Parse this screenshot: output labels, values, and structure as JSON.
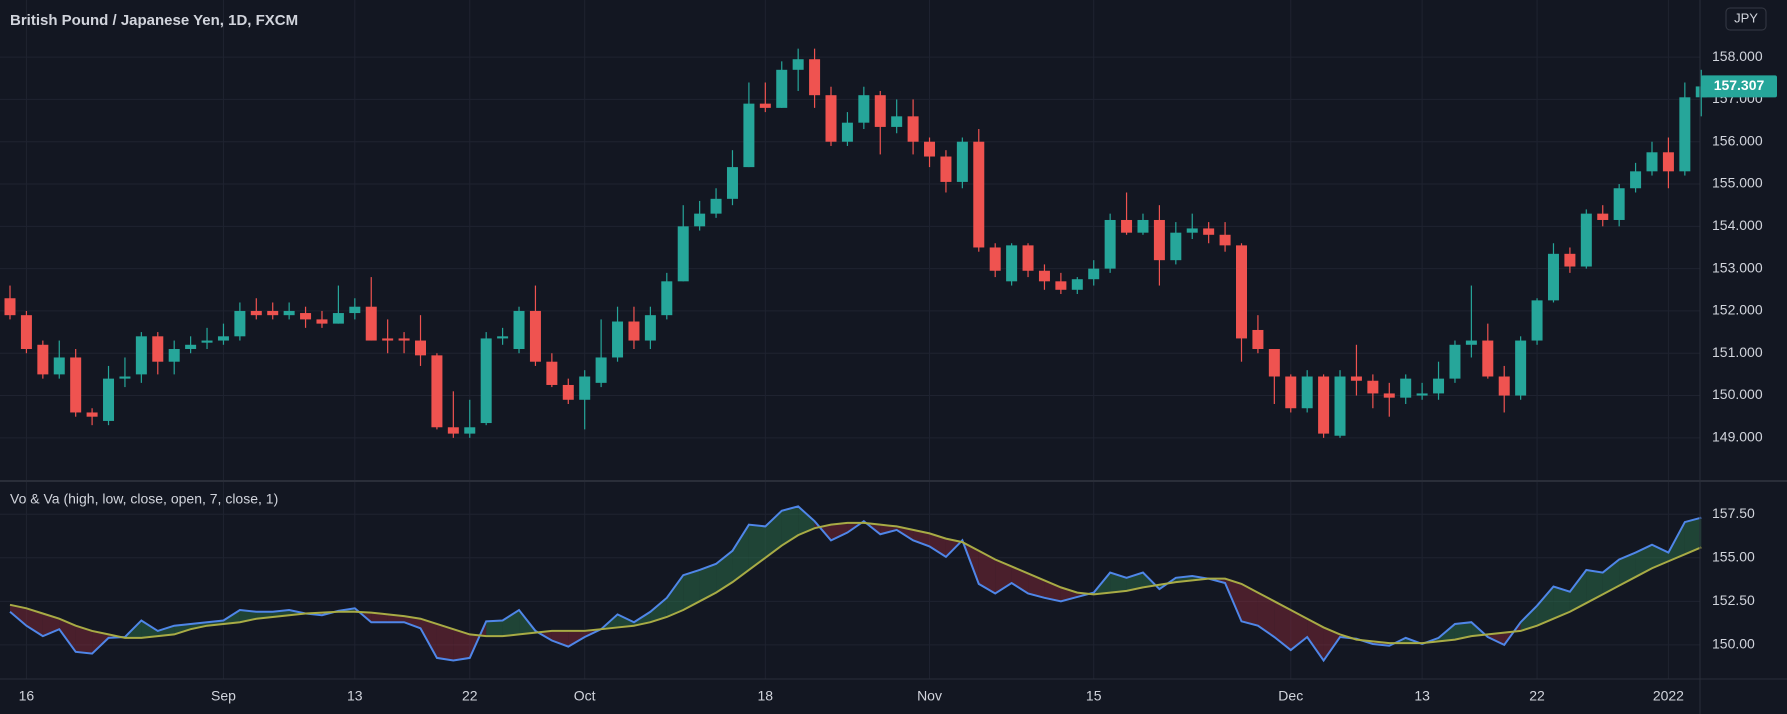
{
  "chart_data": [
    {
      "type": "candlestick",
      "title": "British Pound / Japanese Yen, 1D, FXCM",
      "currency": "JPY",
      "up_color": "#26a69a",
      "down_color": "#ef5350",
      "grid": true,
      "categories": [
        null,
        "16",
        null,
        null,
        null,
        null,
        null,
        null,
        null,
        null,
        null,
        null,
        null,
        "Sep",
        null,
        null,
        null,
        null,
        null,
        null,
        null,
        "13",
        null,
        null,
        null,
        null,
        null,
        null,
        "22",
        null,
        null,
        null,
        null,
        null,
        null,
        "Oct",
        null,
        null,
        null,
        null,
        null,
        null,
        null,
        null,
        null,
        null,
        "18",
        null,
        null,
        null,
        null,
        null,
        null,
        null,
        null,
        null,
        "Nov",
        null,
        null,
        null,
        null,
        null,
        null,
        null,
        null,
        null,
        "15",
        null,
        null,
        null,
        null,
        null,
        null,
        null,
        null,
        null,
        null,
        null,
        "Dec",
        null,
        null,
        null,
        null,
        null,
        null,
        null,
        "13",
        null,
        null,
        null,
        null,
        null,
        null,
        "22",
        null,
        null,
        null,
        null,
        null,
        null,
        null,
        "2022",
        null,
        null
      ],
      "open": [
        152.3,
        151.9,
        151.2,
        150.5,
        150.9,
        149.6,
        149.4,
        150.4,
        150.5,
        151.4,
        150.8,
        151.1,
        151.25,
        151.3,
        151.4,
        152.0,
        152.0,
        151.9,
        151.95,
        151.8,
        151.7,
        151.95,
        152.1,
        151.35,
        151.35,
        151.3,
        150.95,
        149.25,
        149.1,
        149.35,
        151.35,
        151.1,
        152.0,
        150.8,
        150.25,
        149.9,
        150.3,
        150.9,
        151.75,
        151.3,
        151.9,
        152.7,
        154.0,
        154.3,
        154.65,
        155.4,
        156.9,
        156.8,
        157.7,
        157.95,
        157.1,
        156.0,
        156.45,
        157.1,
        156.35,
        156.6,
        156.0,
        155.65,
        155.05,
        156.0,
        153.5,
        152.7,
        153.55,
        152.95,
        152.7,
        152.5,
        152.75,
        153.0,
        154.15,
        153.85,
        154.15,
        153.2,
        153.85,
        153.95,
        153.8,
        153.55,
        151.55,
        151.1,
        150.45,
        149.7,
        150.45,
        149.05,
        150.45,
        150.35,
        150.05,
        149.95,
        150.0,
        150.05,
        150.4,
        151.2,
        151.3,
        150.45,
        150.0,
        151.3,
        152.25,
        153.35,
        153.05,
        154.3,
        154.15,
        154.9,
        155.3,
        155.75,
        155.3,
        157.05
      ],
      "high": [
        152.6,
        152.0,
        151.3,
        151.3,
        151.1,
        149.7,
        150.7,
        150.9,
        151.5,
        151.5,
        151.3,
        151.4,
        151.6,
        151.7,
        152.2,
        152.3,
        152.2,
        152.2,
        152.1,
        152.0,
        152.6,
        152.3,
        152.8,
        151.8,
        151.5,
        151.9,
        151.0,
        150.1,
        149.9,
        151.5,
        151.6,
        152.1,
        152.6,
        151.0,
        150.4,
        150.6,
        151.8,
        152.1,
        152.1,
        152.1,
        152.9,
        154.5,
        154.6,
        154.9,
        155.8,
        157.4,
        157.4,
        157.9,
        158.2,
        158.2,
        157.3,
        156.7,
        157.3,
        157.2,
        157.0,
        157.0,
        156.1,
        155.8,
        156.1,
        156.3,
        153.6,
        153.6,
        153.6,
        153.1,
        152.9,
        152.8,
        153.2,
        154.3,
        154.8,
        154.3,
        154.5,
        154.1,
        154.3,
        154.1,
        154.1,
        153.6,
        151.9,
        151.1,
        150.5,
        150.6,
        150.5,
        150.6,
        151.2,
        150.5,
        150.3,
        150.5,
        150.3,
        150.8,
        151.3,
        152.6,
        151.7,
        150.7,
        151.4,
        152.3,
        153.6,
        153.5,
        154.4,
        154.5,
        155.0,
        155.5,
        156.0,
        156.1,
        157.4,
        157.7
      ],
      "low": [
        151.8,
        151.0,
        150.4,
        150.4,
        149.5,
        149.3,
        149.3,
        150.2,
        150.3,
        150.5,
        150.5,
        151.0,
        151.1,
        151.2,
        151.3,
        151.8,
        151.8,
        151.8,
        151.6,
        151.6,
        151.7,
        151.8,
        151.3,
        151.0,
        151.0,
        150.7,
        149.2,
        149.0,
        149.0,
        149.3,
        151.2,
        151.0,
        150.7,
        150.2,
        149.8,
        149.2,
        150.2,
        150.8,
        151.1,
        151.1,
        151.8,
        152.7,
        153.9,
        154.2,
        154.5,
        155.4,
        156.7,
        156.8,
        157.2,
        156.8,
        155.9,
        155.9,
        156.3,
        155.7,
        156.2,
        155.7,
        155.4,
        154.8,
        154.9,
        153.4,
        152.8,
        152.6,
        152.8,
        152.5,
        152.4,
        152.4,
        152.6,
        152.9,
        153.8,
        153.8,
        152.6,
        153.1,
        153.7,
        153.6,
        153.4,
        150.8,
        151.0,
        149.8,
        149.6,
        149.6,
        149.0,
        149.0,
        150.0,
        149.7,
        149.5,
        149.8,
        149.9,
        149.9,
        150.3,
        150.9,
        150.4,
        149.6,
        149.9,
        151.2,
        152.2,
        152.9,
        153.0,
        154.0,
        154.0,
        154.8,
        155.2,
        154.9,
        155.2,
        156.6
      ],
      "close": [
        151.9,
        151.1,
        150.5,
        150.9,
        149.6,
        149.5,
        150.4,
        150.45,
        151.4,
        150.8,
        151.1,
        151.2,
        151.3,
        151.4,
        152.0,
        151.9,
        151.9,
        152.0,
        151.8,
        151.7,
        151.95,
        152.1,
        151.3,
        151.3,
        151.3,
        150.95,
        149.25,
        149.1,
        149.25,
        151.35,
        151.4,
        152.0,
        150.8,
        150.25,
        149.9,
        150.45,
        150.9,
        151.75,
        151.3,
        151.9,
        152.7,
        154.0,
        154.3,
        154.65,
        155.4,
        156.9,
        156.8,
        157.7,
        157.95,
        157.1,
        156.0,
        156.45,
        157.1,
        156.35,
        156.6,
        156.0,
        155.65,
        155.05,
        156.0,
        153.5,
        152.95,
        153.55,
        152.95,
        152.7,
        152.5,
        152.75,
        153.0,
        154.15,
        153.85,
        154.15,
        153.2,
        153.85,
        153.95,
        153.8,
        153.55,
        151.35,
        151.1,
        150.45,
        149.7,
        150.45,
        149.1,
        150.45,
        150.35,
        150.05,
        149.95,
        150.4,
        150.05,
        150.4,
        151.2,
        151.3,
        150.45,
        150.0,
        151.3,
        152.25,
        153.35,
        153.05,
        154.3,
        154.15,
        154.9,
        155.3,
        155.75,
        155.3,
        157.05,
        157.307
      ],
      "ylim": [
        147.98,
        159.35
      ],
      "yticks": [
        {
          "value": 149,
          "label": "149.000"
        },
        {
          "value": 150,
          "label": "150.000"
        },
        {
          "value": 151,
          "label": "151.000"
        },
        {
          "value": 152,
          "label": "152.000"
        },
        {
          "value": 153,
          "label": "153.000"
        },
        {
          "value": 154,
          "label": "154.000"
        },
        {
          "value": 155,
          "label": "155.000"
        },
        {
          "value": 156,
          "label": "156.000"
        },
        {
          "value": 157,
          "label": "157.000"
        },
        {
          "value": 158,
          "label": "158.000"
        }
      ]
    },
    {
      "type": "line",
      "title": "Vo & Va (high, low, close, open, 7, close, 1)",
      "grid": true,
      "fill_up": "#2e7d4f",
      "fill_down": "#8e2b3a",
      "series": [
        {
          "color": "#4f86e8",
          "values": [
            151.9,
            151.1,
            150.5,
            150.9,
            149.6,
            149.5,
            150.4,
            150.45,
            151.4,
            150.8,
            151.1,
            151.2,
            151.3,
            151.4,
            152.0,
            151.9,
            151.9,
            152.0,
            151.8,
            151.7,
            151.95,
            152.1,
            151.3,
            151.3,
            151.3,
            150.95,
            149.25,
            149.1,
            149.25,
            151.35,
            151.4,
            152.0,
            150.8,
            150.25,
            149.9,
            150.45,
            150.9,
            151.75,
            151.3,
            151.9,
            152.7,
            154.0,
            154.3,
            154.65,
            155.4,
            156.9,
            156.8,
            157.7,
            157.95,
            157.1,
            156.0,
            156.45,
            157.1,
            156.35,
            156.6,
            156.0,
            155.65,
            155.05,
            156.0,
            153.5,
            152.95,
            153.55,
            152.95,
            152.7,
            152.5,
            152.75,
            153.0,
            154.15,
            153.85,
            154.15,
            153.2,
            153.85,
            153.95,
            153.8,
            153.55,
            151.35,
            151.1,
            150.45,
            149.7,
            150.45,
            149.1,
            150.45,
            150.35,
            150.05,
            149.95,
            150.4,
            150.05,
            150.4,
            151.2,
            151.3,
            150.45,
            150.0,
            151.3,
            152.25,
            153.35,
            153.05,
            154.3,
            154.15,
            154.9,
            155.3,
            155.75,
            155.3,
            157.05,
            157.3
          ]
        },
        {
          "color": "#a8ab45",
          "values": [
            152.3,
            152.1,
            151.8,
            151.5,
            151.1,
            150.8,
            150.6,
            150.4,
            150.4,
            150.5,
            150.6,
            150.9,
            151.1,
            151.2,
            151.3,
            151.5,
            151.6,
            151.7,
            151.8,
            151.85,
            151.9,
            151.9,
            151.85,
            151.75,
            151.65,
            151.5,
            151.2,
            150.9,
            150.6,
            150.5,
            150.5,
            150.6,
            150.7,
            150.8,
            150.8,
            150.8,
            150.9,
            151.0,
            151.1,
            151.3,
            151.6,
            152.0,
            152.5,
            153.0,
            153.6,
            154.3,
            155.0,
            155.7,
            156.3,
            156.7,
            156.9,
            157.0,
            157.0,
            156.9,
            156.8,
            156.6,
            156.4,
            156.1,
            155.9,
            155.4,
            154.9,
            154.5,
            154.1,
            153.7,
            153.3,
            153.0,
            152.9,
            153.0,
            153.1,
            153.3,
            153.45,
            153.6,
            153.7,
            153.8,
            153.8,
            153.5,
            153.0,
            152.5,
            152.0,
            151.5,
            151.0,
            150.6,
            150.3,
            150.2,
            150.1,
            150.1,
            150.1,
            150.2,
            150.3,
            150.5,
            150.6,
            150.7,
            150.8,
            151.1,
            151.5,
            151.9,
            152.4,
            152.9,
            153.4,
            153.9,
            154.4,
            154.8,
            155.2,
            155.6
          ]
        }
      ],
      "ylim": [
        148.04,
        159.35
      ],
      "yticks": [
        {
          "value": 150,
          "label": "150.00"
        },
        {
          "value": 152.5,
          "label": "152.50"
        },
        {
          "value": 155,
          "label": "155.00"
        },
        {
          "value": 157.5,
          "label": "157.50"
        }
      ]
    }
  ]
}
